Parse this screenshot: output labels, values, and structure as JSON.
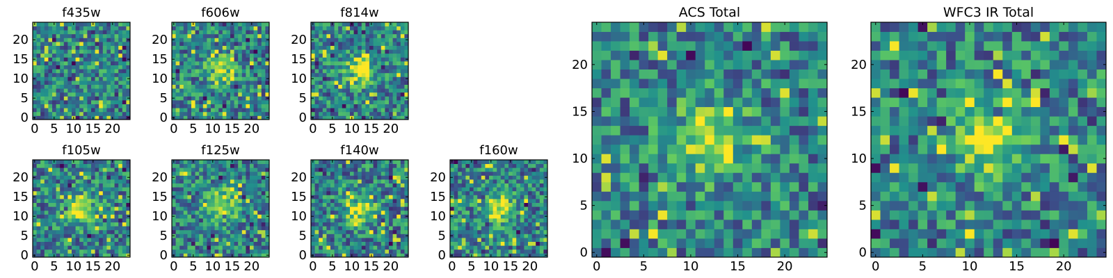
{
  "figure": {
    "colormap": "viridis",
    "colormap_stops": [
      "#440154",
      "#3b528b",
      "#21918c",
      "#5ec962",
      "#fde725"
    ],
    "axis_color": "#000000",
    "background": "#ffffff"
  },
  "chart_data": [
    {
      "type": "heatmap",
      "title": "f435w",
      "grid": "25x25",
      "xlim": [
        0,
        24
      ],
      "ylim": [
        0,
        24
      ],
      "xticks": [
        "0",
        "5",
        "10",
        "15",
        "20"
      ],
      "yticks": [
        "0",
        "5",
        "10",
        "15",
        "20"
      ],
      "grid_lines": false,
      "bright_source": null,
      "seed": 11
    },
    {
      "type": "heatmap",
      "title": "f606w",
      "grid": "25x25",
      "xlim": [
        0,
        24
      ],
      "ylim": [
        0,
        24
      ],
      "xticks": [
        "0",
        "5",
        "10",
        "15",
        "20"
      ],
      "yticks": [
        "0",
        "5",
        "10",
        "15",
        "20"
      ],
      "grid_lines": false,
      "bright_source": [
        12,
        12
      ],
      "seed": 23
    },
    {
      "type": "heatmap",
      "title": "f814w",
      "grid": "25x25",
      "xlim": [
        0,
        24
      ],
      "ylim": [
        0,
        24
      ],
      "xticks": [
        "0",
        "5",
        "10",
        "15",
        "20"
      ],
      "yticks": [
        "0",
        "5",
        "10",
        "15",
        "20"
      ],
      "grid_lines": false,
      "bright_source": [
        12,
        12
      ],
      "seed": 37
    },
    {
      "type": "heatmap",
      "title": "f105w",
      "grid": "25x25",
      "xlim": [
        0,
        24
      ],
      "ylim": [
        0,
        24
      ],
      "xticks": [
        "0",
        "5",
        "10",
        "15",
        "20"
      ],
      "yticks": [
        "0",
        "5",
        "10",
        "15",
        "20"
      ],
      "grid_lines": false,
      "bright_source": [
        12,
        12
      ],
      "seed": 41
    },
    {
      "type": "heatmap",
      "title": "f125w",
      "grid": "25x25",
      "xlim": [
        0,
        24
      ],
      "ylim": [
        0,
        24
      ],
      "xticks": [
        "0",
        "5",
        "10",
        "15",
        "20"
      ],
      "yticks": [
        "0",
        "5",
        "10",
        "15",
        "20"
      ],
      "grid_lines": false,
      "bright_source": [
        13,
        13
      ],
      "seed": 53
    },
    {
      "type": "heatmap",
      "title": "f140w",
      "grid": "25x25",
      "xlim": [
        0,
        24
      ],
      "ylim": [
        0,
        24
      ],
      "xticks": [
        "0",
        "5",
        "10",
        "15",
        "20"
      ],
      "yticks": [
        "0",
        "5",
        "10",
        "15",
        "20"
      ],
      "grid_lines": false,
      "bright_source": [
        12,
        12
      ],
      "seed": 67
    },
    {
      "type": "heatmap",
      "title": "f160w",
      "grid": "25x25",
      "xlim": [
        0,
        24
      ],
      "ylim": [
        0,
        24
      ],
      "xticks": [
        "0",
        "5",
        "10",
        "15",
        "20"
      ],
      "yticks": [
        "0",
        "5",
        "10",
        "15",
        "20"
      ],
      "grid_lines": false,
      "bright_source": [
        12,
        12
      ],
      "seed": 79
    },
    {
      "type": "heatmap",
      "title": "ACS Total",
      "grid": "25x25",
      "xlim": [
        0,
        24
      ],
      "ylim": [
        0,
        24
      ],
      "xticks": [
        "0",
        "5",
        "10",
        "15",
        "20"
      ],
      "yticks": [
        "0",
        "5",
        "10",
        "15",
        "20"
      ],
      "grid_lines": false,
      "bright_source": [
        12,
        12
      ],
      "seed": 97
    },
    {
      "type": "heatmap",
      "title": "WFC3 IR Total",
      "grid": "25x25",
      "xlim": [
        0,
        24
      ],
      "ylim": [
        0,
        24
      ],
      "xticks": [
        "0",
        "5",
        "10",
        "15",
        "20"
      ],
      "yticks": [
        "0",
        "5",
        "10",
        "15",
        "20"
      ],
      "grid_lines": false,
      "bright_source": [
        12,
        12
      ],
      "seed": 131
    }
  ]
}
